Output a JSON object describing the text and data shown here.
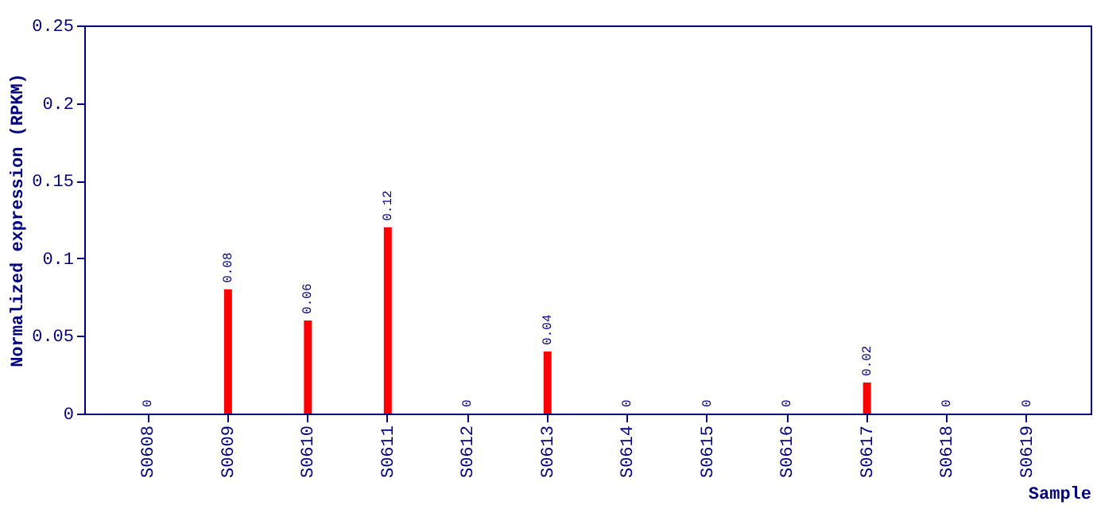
{
  "chart_data": {
    "type": "bar",
    "categories": [
      "S0608",
      "S0609",
      "S0610",
      "S0611",
      "S0612",
      "S0613",
      "S0614",
      "S0615",
      "S0616",
      "S0617",
      "S0618",
      "S0619"
    ],
    "values": [
      0,
      0.08,
      0.06,
      0.12,
      0,
      0.04,
      0,
      0,
      0,
      0.02,
      0,
      0
    ],
    "color": "#ff0000",
    "xlabel": "Sample",
    "ylabel": "Normalized expression (RPKM)",
    "ylim": [
      0,
      0.25
    ],
    "yticks": [
      0,
      0.05,
      0.1,
      0.15,
      0.2,
      0.25
    ],
    "data_labels": true,
    "grid": false
  }
}
